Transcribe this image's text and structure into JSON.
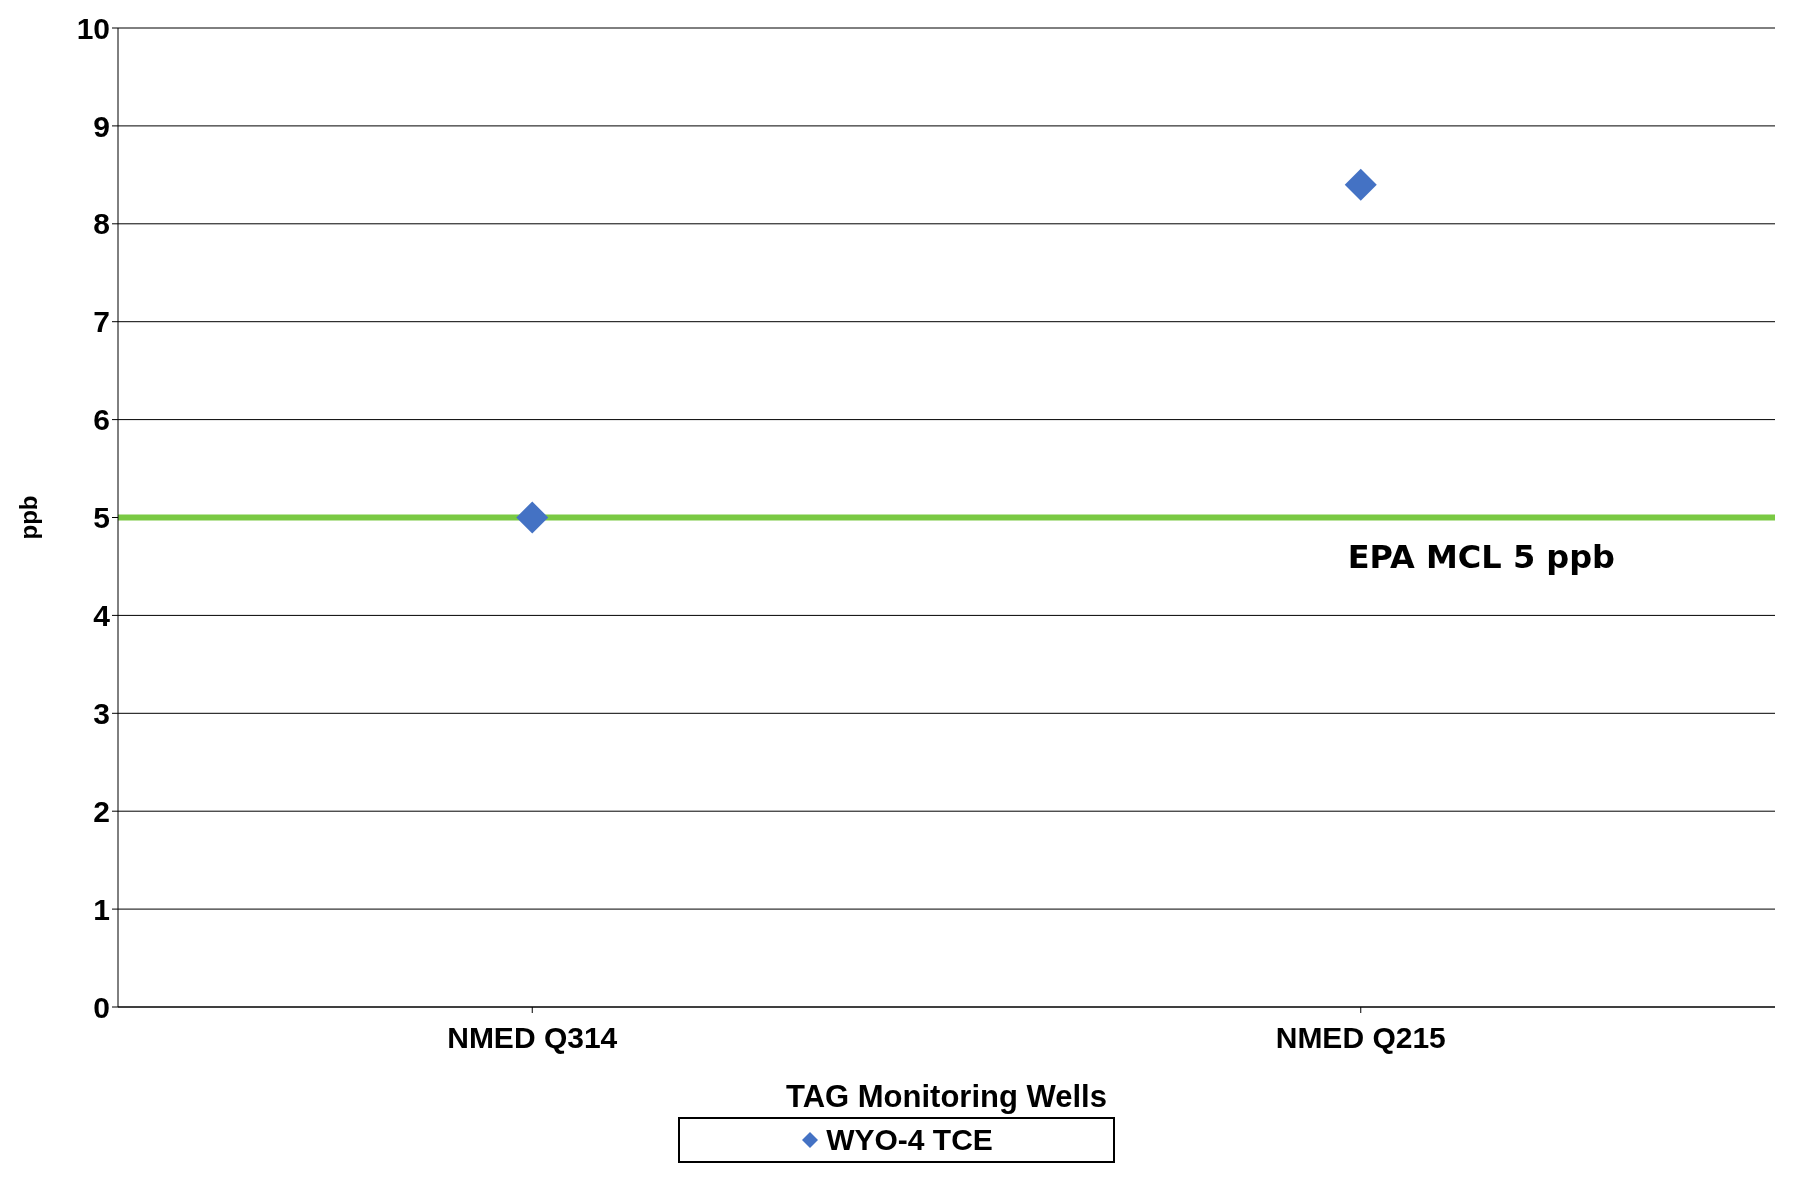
{
  "chart_data": {
    "type": "scatter",
    "xlabel": "TAG Monitoring Wells",
    "ylabel": "ppb",
    "categories": [
      "NMED Q314",
      "NMED Q215"
    ],
    "series": [
      {
        "name": "WYO-4 TCE",
        "color": "#4472c4",
        "values": [
          5,
          8.4
        ]
      }
    ],
    "ylim": [
      0,
      10
    ],
    "yticks": [
      0,
      1,
      2,
      3,
      4,
      5,
      6,
      7,
      8,
      9,
      10
    ],
    "grid": "y",
    "legend": "bottom",
    "marker": "diamond",
    "ref_lines": [
      {
        "axis": "y",
        "value": 5,
        "label": "EPA MCL 5 ppb",
        "color": "#7ac943"
      }
    ]
  }
}
